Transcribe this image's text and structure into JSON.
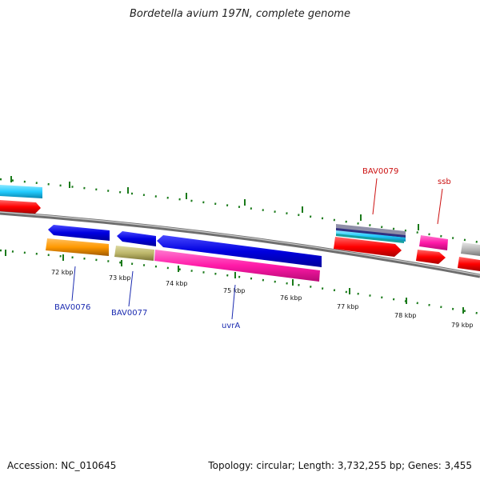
{
  "title": "Bordetella avium 197N, complete genome",
  "footer": {
    "accession": "Accession: NC_010645",
    "summary": "Topology: circular; Length: 3,732,255 bp; Genes: 3,455"
  },
  "ticks": [
    "72 kbp",
    "73 kbp",
    "74 kbp",
    "75 kbp",
    "76 kbp",
    "77 kbp",
    "78 kbp",
    "79 kbp"
  ],
  "gene_labels": {
    "bav0076": "BAV0076",
    "bav0077": "BAV0077",
    "uvra": "uvrA",
    "bav0079": "BAV0079",
    "ssb": "ssb"
  },
  "colors": {
    "blue": "#0000dd",
    "red": "#ff0000",
    "magenta": "#ff1aa8",
    "orange": "#ff9900",
    "olive": "#bdb76b",
    "cyan": "#22ccff",
    "gray": "#b8b8b8",
    "tick_green": "#1a7a1a",
    "label_blue": "#1a2ab0",
    "label_red": "#cc1111"
  }
}
